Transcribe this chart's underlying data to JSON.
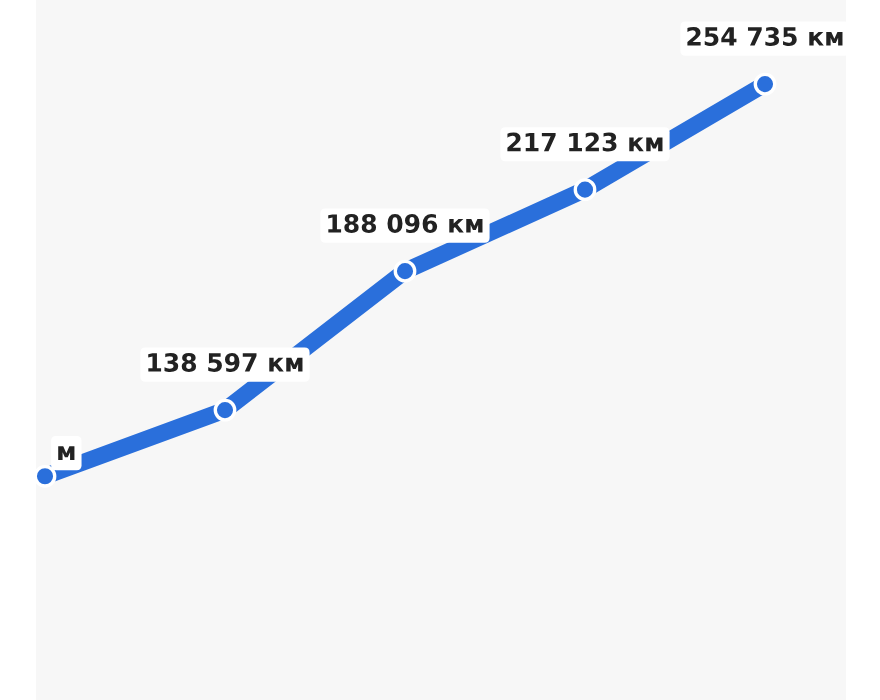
{
  "chart_data": {
    "type": "line",
    "categories": [
      null,
      null,
      null,
      null,
      null
    ],
    "series": [
      {
        "color": "#2a6fdb",
        "values": [
          115000,
          138597,
          188096,
          217123,
          254735
        ],
        "value_labels": [
          "м",
          "138 597 км",
          "188 096 км",
          "217 123 км",
          "254 735 км"
        ]
      }
    ],
    "ylim": [
      35300,
      284700
    ],
    "marker": "circle",
    "line_style": "solid"
  }
}
